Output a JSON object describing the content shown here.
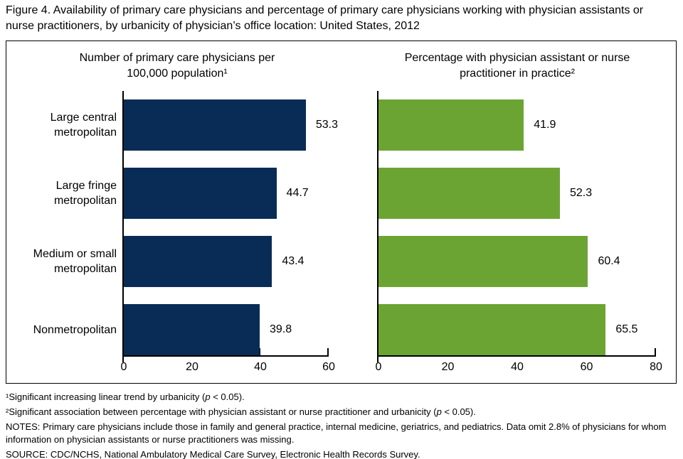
{
  "title": "Figure 4. Availability of primary care physicians and percentage of primary care physicians working with physician assistants or nurse practitioners, by urbanicity of physician’s office location: United States, 2012",
  "colors": {
    "left_bar": "#082C56",
    "right_bar": "#6CA433",
    "axis": "#000000",
    "frame_border": "#000000",
    "background": "#FFFFFF"
  },
  "chart_data": [
    {
      "type": "bar",
      "orientation": "horizontal",
      "title": "Number of primary care physicians per 100,000 population¹",
      "categories": [
        [
          "Large central",
          "metropolitan"
        ],
        [
          "Large fringe",
          "metropolitan"
        ],
        [
          "Medium or small",
          "metropolitan"
        ],
        [
          "Nonmetropolitan"
        ]
      ],
      "values": [
        53.3,
        44.7,
        43.4,
        39.8
      ],
      "value_labels": [
        "53.3",
        "44.7",
        "43.4",
        "39.8"
      ],
      "xlim": [
        0,
        60
      ],
      "x_ticks": [
        0,
        20,
        40,
        60
      ],
      "bar_color": "#082C56",
      "grid": false,
      "category_labels_shown": true
    },
    {
      "type": "bar",
      "orientation": "horizontal",
      "title": "Percentage with physician assistant or nurse practitioner in practice²",
      "categories": [
        [
          "Large central",
          "metropolitan"
        ],
        [
          "Large fringe",
          "metropolitan"
        ],
        [
          "Medium or small",
          "metropolitan"
        ],
        [
          "Nonmetropolitan"
        ]
      ],
      "values": [
        41.9,
        52.3,
        60.4,
        65.5
      ],
      "value_labels": [
        "41.9",
        "52.3",
        "60.4",
        "65.5"
      ],
      "xlim": [
        0,
        80
      ],
      "x_ticks": [
        0,
        20,
        40,
        60,
        80
      ],
      "bar_color": "#6CA433",
      "grid": false,
      "category_labels_shown": false
    }
  ],
  "footnotes": {
    "fn1": {
      "pre": "¹Significant increasing linear trend by urbanicity (",
      "p": "p",
      "post": " < 0.05)."
    },
    "fn2": {
      "pre": "²Significant association between percentage with physician assistant or nurse practitioner and urbanicity (",
      "p": "p",
      "post": " < 0.05)."
    },
    "notes": "NOTES: Primary care physicians include those in family and general practice, internal medicine, geriatrics, and pediatrics. Data omit 2.8% of physicians for whom information on physician assistants or nurse practitioners was missing.",
    "source": "SOURCE: CDC/NCHS, National Ambulatory Medical Care Survey, Electronic Health Records Survey."
  }
}
